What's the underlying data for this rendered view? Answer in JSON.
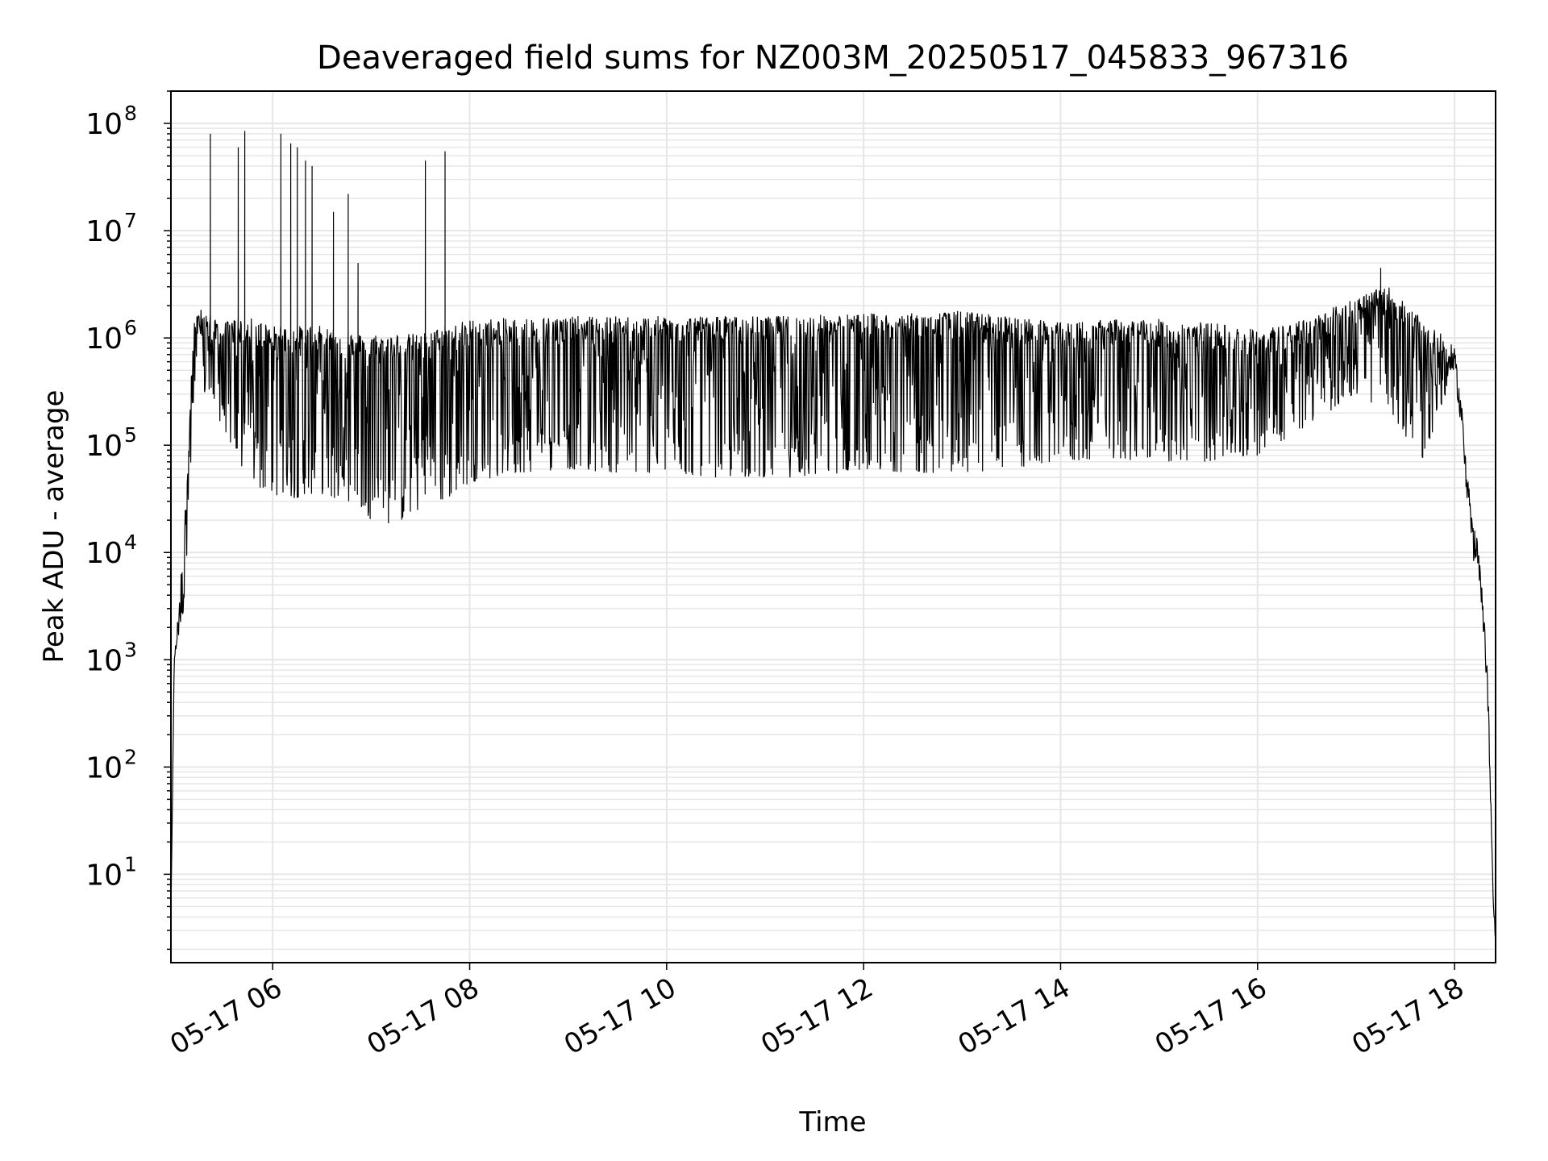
{
  "chart_data": {
    "type": "line",
    "title": "Deaveraged field sums for NZ003M_20250517_045833_967316",
    "xlabel": "Time",
    "ylabel": "Peak ADU - average",
    "x_ticks": [
      "05-17 06",
      "05-17 08",
      "05-17 10",
      "05-17 12",
      "05-17 14",
      "05-17 16",
      "05-17 18"
    ],
    "y_ticks": [
      "10^1",
      "10^2",
      "10^3",
      "10^4",
      "10^5",
      "10^6",
      "10^7",
      "10^8"
    ],
    "y_scale": "log",
    "xlim": [
      "2025-05-17 04:58",
      "2025-05-17 18:25"
    ],
    "ylim": [
      1.5,
      200000000
    ],
    "grid": true,
    "line_color": "#000000",
    "grid_color": "#e6e6e6",
    "x": [
      "2025-05-17 04:58",
      "2025-05-17 05:00",
      "2025-05-17 05:06",
      "2025-05-17 05:12",
      "2025-05-17 05:18",
      "2025-05-17 05:24",
      "2025-05-17 05:30",
      "2025-05-17 05:40",
      "2025-05-17 05:50",
      "2025-05-17 06:00",
      "2025-05-17 06:10",
      "2025-05-17 06:20",
      "2025-05-17 06:30",
      "2025-05-17 06:40",
      "2025-05-17 06:50",
      "2025-05-17 07:00",
      "2025-05-17 07:15",
      "2025-05-17 07:30",
      "2025-05-17 07:45",
      "2025-05-17 08:00",
      "2025-05-17 08:30",
      "2025-05-17 09:00",
      "2025-05-17 09:30",
      "2025-05-17 10:00",
      "2025-05-17 10:30",
      "2025-05-17 11:00",
      "2025-05-17 11:30",
      "2025-05-17 12:00",
      "2025-05-17 12:30",
      "2025-05-17 13:00",
      "2025-05-17 13:30",
      "2025-05-17 14:00",
      "2025-05-17 14:30",
      "2025-05-17 15:00",
      "2025-05-17 15:30",
      "2025-05-17 16:00",
      "2025-05-17 16:30",
      "2025-05-17 17:00",
      "2025-05-17 17:20",
      "2025-05-17 17:40",
      "2025-05-17 17:55",
      "2025-05-17 18:00",
      "2025-05-17 18:05",
      "2025-05-17 18:10",
      "2025-05-17 18:15",
      "2025-05-17 18:20",
      "2025-05-17 18:24"
    ],
    "series": [
      {
        "values_high": [
          4,
          1000,
          15000,
          1500000,
          2000000,
          1500000,
          1400000,
          1600000,
          1500000,
          1300000,
          1300000,
          1300000,
          1300000,
          1200000,
          1100000,
          1100000,
          1100000,
          1100000,
          1300000,
          1500000,
          1550000,
          1600000,
          1600000,
          1600000,
          1600000,
          1600000,
          1650000,
          1700000,
          1700000,
          1800000,
          1600000,
          1400000,
          1500000,
          1500000,
          1400000,
          1200000,
          1500000,
          2500000,
          3000000,
          1500000,
          1000000,
          800000,
          200000,
          30000,
          10000,
          1000,
          4
        ],
        "values_low": [
          4,
          1000,
          3000,
          200000,
          300000,
          200000,
          150000,
          60000,
          40000,
          35000,
          30000,
          35000,
          35000,
          30000,
          30000,
          20000,
          18000,
          25000,
          30000,
          45000,
          55000,
          60000,
          55000,
          55000,
          50000,
          50000,
          50000,
          60000,
          55000,
          55000,
          60000,
          70000,
          75000,
          70000,
          70000,
          80000,
          150000,
          300000,
          200000,
          70000,
          300000,
          500000,
          100000,
          10000,
          5000,
          500,
          4
        ]
      }
    ],
    "spikes": [
      {
        "x": "2025-05-17 05:22",
        "value": 80000000
      },
      {
        "x": "2025-05-17 05:39",
        "value": 60000000
      },
      {
        "x": "2025-05-17 05:43",
        "value": 85000000
      },
      {
        "x": "2025-05-17 06:05",
        "value": 80000000
      },
      {
        "x": "2025-05-17 06:11",
        "value": 65000000
      },
      {
        "x": "2025-05-17 06:15",
        "value": 60000000
      },
      {
        "x": "2025-05-17 06:20",
        "value": 45000000
      },
      {
        "x": "2025-05-17 06:24",
        "value": 40000000
      },
      {
        "x": "2025-05-17 06:37",
        "value": 15000000
      },
      {
        "x": "2025-05-17 06:46",
        "value": 22000000
      },
      {
        "x": "2025-05-17 06:52",
        "value": 5000000
      },
      {
        "x": "2025-05-17 07:33",
        "value": 45000000
      },
      {
        "x": "2025-05-17 07:45",
        "value": 55000000
      },
      {
        "x": "2025-05-17 17:15",
        "value": 4500000
      }
    ]
  }
}
